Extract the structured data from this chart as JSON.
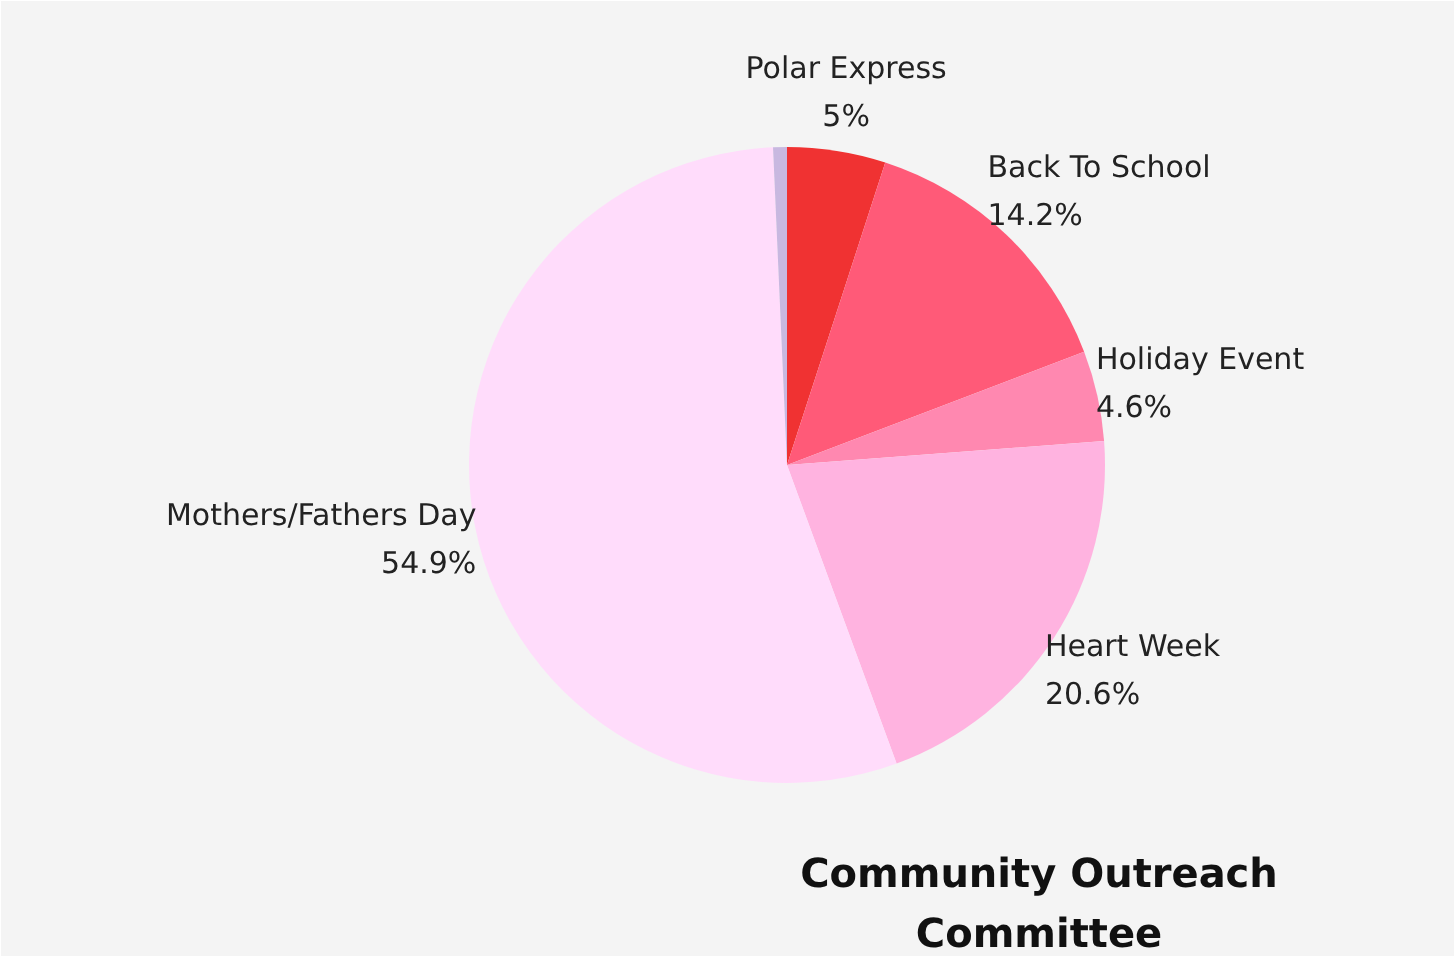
{
  "chart_data": {
    "type": "pie",
    "title": "Community Outreach Committee",
    "categories": [
      "Polar Express",
      "Back To School",
      "Holiday Event",
      "Heart Week",
      "Mothers/Fathers Day",
      null
    ],
    "values": [
      5,
      14.2,
      4.6,
      20.6,
      54.9,
      0.7
    ],
    "value_labels": [
      "5%",
      "14.2%",
      "4.6%",
      "20.6%",
      "54.9%",
      null
    ],
    "colors": [
      "#f03232",
      "#ff5a78",
      "#ff88b0",
      "#ffb3e0",
      "#ffdcfb",
      "#c8b8e0"
    ]
  }
}
